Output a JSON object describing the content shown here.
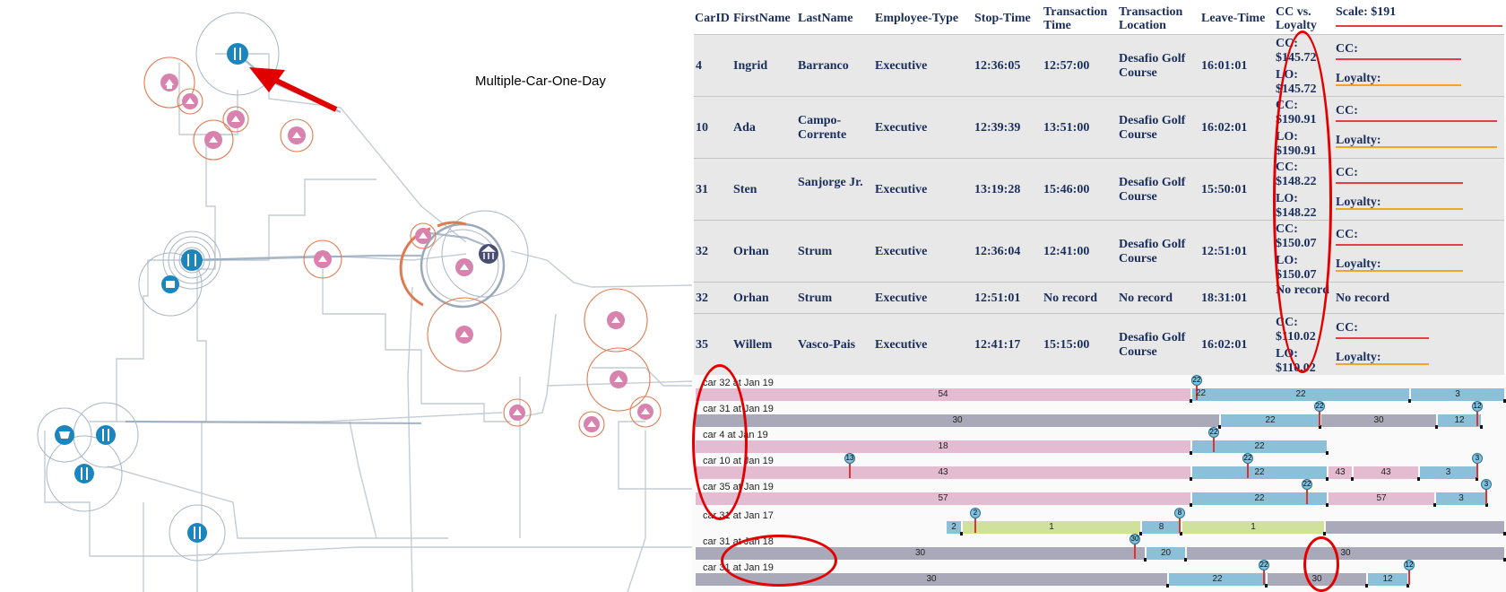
{
  "map": {
    "title": "Multiple-Car-One-Day"
  },
  "table": {
    "headers": {
      "carid": "CarID",
      "firstname": "FirstName",
      "lastname": "LastName",
      "employee_type": "Employee-Type",
      "stop_time": "Stop-Time",
      "transaction_time": "Transaction Time",
      "transaction_location": "Transaction Location",
      "leave_time": "Leave-Time",
      "cc_vs_loyalty": "CC vs. Loyalty",
      "scale": "Scale: $191"
    },
    "rows": [
      {
        "carid": "4",
        "first": "Ingrid",
        "last": "Barranco",
        "type": "Executive",
        "stop": "12:36:05",
        "trans_time": "12:57:00",
        "location": "Desafio Golf Course",
        "leave": "16:01:01",
        "cc": "CC: $145.72",
        "lo": "LO: $145.72",
        "bar_cc": "CC:",
        "bar_lo": "Loyalty:"
      },
      {
        "carid": "10",
        "first": "Ada",
        "last": "Campo-Corrente",
        "type": "Executive",
        "stop": "12:39:39",
        "trans_time": "13:51:00",
        "location": "Desafio Golf Course",
        "leave": "16:02:01",
        "cc": "CC: $190.91",
        "lo": "LO: $190.91",
        "bar_cc": "CC:",
        "bar_lo": "Loyalty:"
      },
      {
        "carid": "31",
        "first": "Sten",
        "last": "Sanjorge Jr.",
        "type": "Executive",
        "stop": "13:19:28",
        "trans_time": "15:46:00",
        "location": "Desafio Golf Course",
        "leave": "15:50:01",
        "cc": "CC: $148.22",
        "lo": "LO: $148.22",
        "bar_cc": "CC:",
        "bar_lo": "Loyalty:"
      },
      {
        "carid": "32",
        "first": "Orhan",
        "last": "Strum",
        "type": "Executive",
        "stop": "12:36:04",
        "trans_time": "12:41:00",
        "location": "Desafio Golf Course",
        "leave": "12:51:01",
        "cc": "CC: $150.07",
        "lo": "LO: $150.07",
        "bar_cc": "CC:",
        "bar_lo": "Loyalty:"
      },
      {
        "carid": "32",
        "first": "Orhan",
        "last": "Strum",
        "type": "Executive",
        "stop": "12:51:01",
        "trans_time": "No record",
        "location": "No record",
        "leave": "18:31:01",
        "cc": "No record",
        "lo": "",
        "bar_cc": "No record",
        "bar_lo": ""
      },
      {
        "carid": "35",
        "first": "Willem",
        "last": "Vasco-Pais",
        "type": "Executive",
        "stop": "12:41:17",
        "trans_time": "15:15:00",
        "location": "Desafio Golf Course",
        "leave": "16:02:01",
        "cc": "CC: $110.02",
        "lo": "LO: $110.02",
        "bar_cc": "CC:",
        "bar_lo": "Loyalty:"
      }
    ]
  },
  "timelines": [
    {
      "label": "car 32 at Jan 19",
      "segments": [
        {
          "color": "pink",
          "text": "54"
        },
        {
          "color": "blue",
          "text": "22"
        },
        {
          "color": "blue",
          "text": "3"
        }
      ],
      "dots": [
        "22"
      ],
      "start_label": "22"
    },
    {
      "label": "car 31 at Jan 19",
      "segments": [
        {
          "color": "gray",
          "text": "30"
        },
        {
          "color": "blue",
          "text": "22"
        },
        {
          "color": "gray",
          "text": "30"
        },
        {
          "color": "blue",
          "text": "12"
        }
      ],
      "dots": [
        "22",
        "12"
      ]
    },
    {
      "label": "car 4 at Jan 19",
      "segments": [
        {
          "color": "pink",
          "text": "18"
        },
        {
          "color": "blue",
          "text": "22"
        }
      ],
      "dots": [
        "22"
      ]
    },
    {
      "label": "car 10 at Jan 19",
      "segments": [
        {
          "color": "pink",
          "text": "43"
        },
        {
          "color": "blue",
          "text": "22"
        },
        {
          "color": "pink",
          "text": "43"
        },
        {
          "color": "pink",
          "text": "43"
        },
        {
          "color": "blue",
          "text": "3"
        }
      ],
      "dots": [
        "13",
        "22",
        "3"
      ]
    },
    {
      "label": "car 35 at Jan 19",
      "segments": [
        {
          "color": "pink",
          "text": "57"
        },
        {
          "color": "blue",
          "text": "22"
        },
        {
          "color": "pink",
          "text": "57"
        },
        {
          "color": "blue",
          "text": "3"
        }
      ],
      "dots": [
        "22",
        "3"
      ]
    },
    {
      "label": "car 31 at Jan 17",
      "segments": [
        {
          "color": "blue",
          "text": "2"
        },
        {
          "color": "green",
          "text": "1"
        },
        {
          "color": "blue",
          "text": "8"
        },
        {
          "color": "green",
          "text": "1"
        },
        {
          "color": "gray",
          "text": ""
        }
      ],
      "dots": [
        "2",
        "8"
      ]
    },
    {
      "label": "car 31 at Jan 18",
      "segments": [
        {
          "color": "gray",
          "text": "30"
        },
        {
          "color": "blue",
          "text": "20"
        },
        {
          "color": "gray",
          "text": "30"
        }
      ],
      "dots": [
        "30"
      ]
    },
    {
      "label": "car 31 at Jan 19",
      "segments": [
        {
          "color": "gray",
          "text": "30"
        },
        {
          "color": "blue",
          "text": "22"
        },
        {
          "color": "gray",
          "text": "30"
        },
        {
          "color": "blue",
          "text": "12"
        }
      ],
      "dots": [
        "22",
        "12"
      ]
    }
  ],
  "colors": {
    "header_text": "#1a2e5c",
    "row_bg": "#e8e8e8",
    "pink": "#e3bcd1",
    "blue": "#8cc0d8",
    "gray": "#a9a9b9",
    "green": "#cfe19a",
    "annotation": "#e40000",
    "cc_line": "#e04040",
    "loyalty_line": "#f2a521"
  }
}
